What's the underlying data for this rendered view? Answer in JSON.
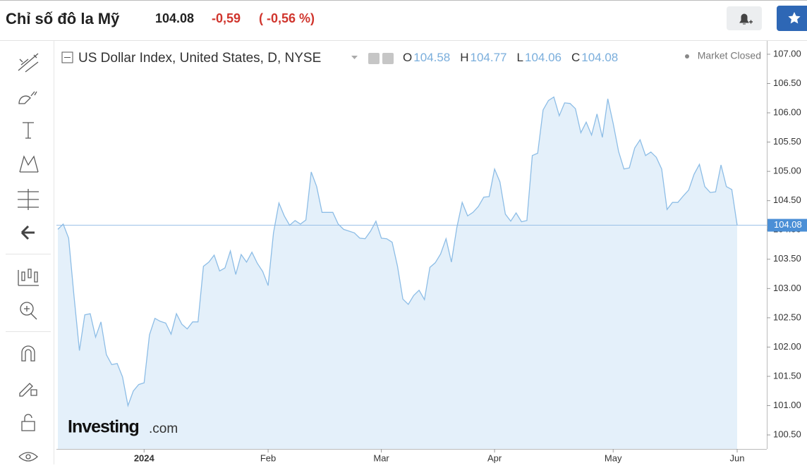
{
  "header": {
    "title": "Chỉ số đô la Mỹ",
    "price": "104.08",
    "change": "-0,59",
    "change_pct": "( -0,56 %)"
  },
  "ohlc": [
    {
      "label": "O",
      "value": "104.58"
    },
    {
      "label": "H",
      "value": "104.77"
    },
    {
      "label": "L",
      "value": "104.06"
    },
    {
      "label": "C",
      "value": "104.08"
    }
  ],
  "status": "Market Closed",
  "brand": {
    "name": "Investing",
    "suffix": ".com"
  },
  "chart_data": {
    "type": "area",
    "title": "US Dollar Index, United States, D, NYSE",
    "color": "#8dbde6",
    "fill": "#e4f0fa",
    "categories": [
      null,
      null,
      null,
      null,
      null,
      null,
      null,
      null,
      null,
      null,
      null,
      null,
      null,
      null,
      null,
      null,
      "2024",
      null,
      null,
      null,
      null,
      null,
      null,
      null,
      null,
      null,
      null,
      null,
      null,
      null,
      null,
      null,
      null,
      null,
      null,
      null,
      null,
      null,
      null,
      "Feb",
      null,
      null,
      null,
      null,
      null,
      null,
      null,
      null,
      null,
      null,
      null,
      null,
      null,
      null,
      null,
      null,
      null,
      null,
      null,
      null,
      "Mar",
      null,
      null,
      null,
      null,
      null,
      null,
      null,
      null,
      null,
      null,
      null,
      null,
      null,
      null,
      null,
      null,
      null,
      null,
      null,
      null,
      "Apr",
      null,
      null,
      null,
      null,
      null,
      null,
      null,
      null,
      null,
      null,
      null,
      null,
      null,
      null,
      null,
      null,
      null,
      null,
      null,
      null,
      null,
      "May",
      null,
      null,
      null,
      null,
      null,
      null,
      null,
      null,
      null,
      null,
      null,
      null,
      null,
      null,
      null,
      null,
      null,
      null,
      null,
      null,
      null,
      null,
      "Jun"
    ],
    "values": [
      104.01,
      104.1,
      103.86,
      102.87,
      101.94,
      102.55,
      102.57,
      102.17,
      102.43,
      101.87,
      101.7,
      101.72,
      101.49,
      101.0,
      101.25,
      101.36,
      101.39,
      102.21,
      102.49,
      102.44,
      102.41,
      102.22,
      102.57,
      102.39,
      102.31,
      102.43,
      102.43,
      103.38,
      103.45,
      103.57,
      103.3,
      103.35,
      103.64,
      103.24,
      103.58,
      103.45,
      103.62,
      103.43,
      103.29,
      103.05,
      103.95,
      104.46,
      104.24,
      104.08,
      104.16,
      104.1,
      104.17,
      104.99,
      104.74,
      104.3,
      104.3,
      104.3,
      104.1,
      104.01,
      103.98,
      103.95,
      103.86,
      103.85,
      103.98,
      104.15,
      103.86,
      103.85,
      103.79,
      103.38,
      102.82,
      102.73,
      102.88,
      102.97,
      102.81,
      103.36,
      103.44,
      103.59,
      103.85,
      103.45,
      104.04,
      104.47,
      104.24,
      104.3,
      104.4,
      104.56,
      104.57,
      105.04,
      104.82,
      104.27,
      104.15,
      104.29,
      104.14,
      104.16,
      105.27,
      105.31,
      106.05,
      106.21,
      106.27,
      105.95,
      106.17,
      106.16,
      106.07,
      105.66,
      105.84,
      105.62,
      105.98,
      105.58,
      106.24,
      105.82,
      105.34,
      105.04,
      105.06,
      105.4,
      105.54,
      105.27,
      105.33,
      105.24,
      105.04,
      104.35,
      104.47,
      104.47,
      104.58,
      104.68,
      104.95,
      105.12,
      104.74,
      104.64,
      104.65,
      105.11,
      104.74,
      104.69,
      104.08
    ],
    "last_value": 104.08,
    "ylim": [
      100.26,
      107.18
    ],
    "yticks": [
      {
        "value": 100.5,
        "label": "100.50"
      },
      {
        "value": 101,
        "label": "101.00"
      },
      {
        "value": 101.5,
        "label": "101.50"
      },
      {
        "value": 102,
        "label": "102.00"
      },
      {
        "value": 102.5,
        "label": "102.50"
      },
      {
        "value": 103,
        "label": "103.00"
      },
      {
        "value": 103.5,
        "label": "103.50"
      },
      {
        "value": 104,
        "label": "104.00"
      },
      {
        "value": 104.5,
        "label": "104.50"
      },
      {
        "value": 105,
        "label": "105.00"
      },
      {
        "value": 105.5,
        "label": "105.50"
      },
      {
        "value": 106,
        "label": "106.00"
      },
      {
        "value": 106.5,
        "label": "106.50"
      },
      {
        "value": 107,
        "label": "107.00"
      }
    ],
    "grid": false
  }
}
